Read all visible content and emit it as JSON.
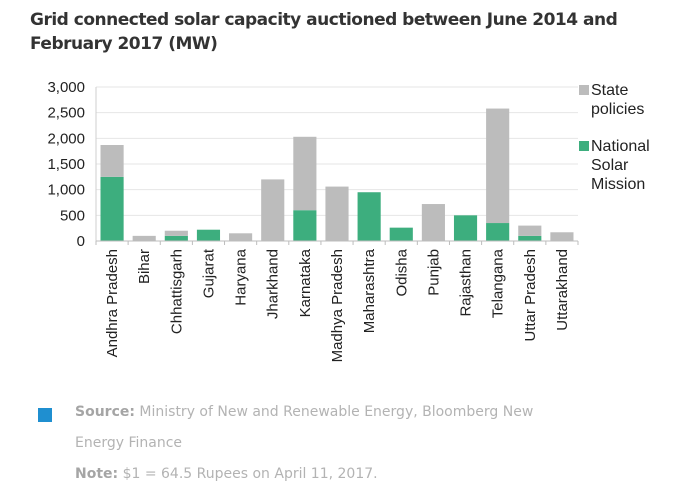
{
  "title": "Grid connected solar capacity auctioned between June 2014 and February 2017 (MW)",
  "chart_data": {
    "type": "bar",
    "stacked": true,
    "title": "Grid connected solar capacity auctioned between June 2014 and February 2017 (MW)",
    "xlabel": "",
    "ylabel": "",
    "ylim": [
      0,
      3000
    ],
    "yticks": [
      0,
      500,
      1000,
      1500,
      2000,
      2500,
      3000
    ],
    "ytick_labels": [
      "0",
      "500",
      "1,000",
      "1,500",
      "2,000",
      "2,500",
      "3,000"
    ],
    "grid": true,
    "legend_position": "right",
    "categories": [
      "Andhra Pradesh",
      "Bihar",
      "Chhattisgarh",
      "Gujarat",
      "Haryana",
      "Jharkhand",
      "Karnataka",
      "Madhya Pradesh",
      "Maharashtra",
      "Odisha",
      "Punjab",
      "Rajasthan",
      "Telangana",
      "Uttar Pradesh",
      "Uttarakhand"
    ],
    "series": [
      {
        "name": "National Solar Mission",
        "color": "#3dae7e",
        "values": [
          1250,
          0,
          100,
          220,
          0,
          0,
          600,
          0,
          950,
          260,
          0,
          500,
          350,
          100,
          0
        ]
      },
      {
        "name": "State policies",
        "color": "#bcbcbc",
        "values": [
          620,
          100,
          100,
          0,
          150,
          1200,
          1430,
          1060,
          0,
          0,
          720,
          0,
          2230,
          200,
          170
        ]
      }
    ],
    "legend": [
      {
        "label_lines": [
          "State",
          "policies"
        ],
        "color": "#bcbcbc"
      },
      {
        "label_lines": [
          "National",
          "Solar",
          "Mission"
        ],
        "color": "#3dae7e"
      }
    ]
  },
  "footer": {
    "source_label": "Source:",
    "source_text": " Ministry of New and Renewable Energy, Bloomberg New",
    "source_text_cont": "Energy Finance",
    "note_label": "Note:",
    "note_text": " $1 = 64.5 Rupees on April 11, 2017.",
    "marker_color": "#1f8fd0"
  }
}
